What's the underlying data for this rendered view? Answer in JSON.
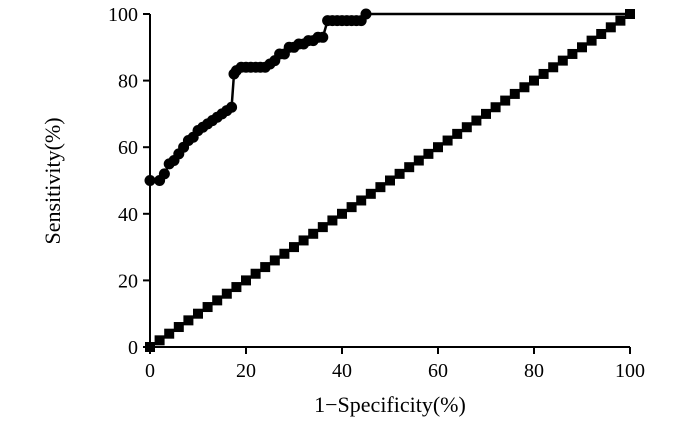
{
  "chart_data": {
    "type": "line",
    "title": "",
    "xlabel": "1−Specificity(%)",
    "ylabel": "Sensitivity(%)",
    "xlim": [
      0,
      100
    ],
    "ylim": [
      0,
      100
    ],
    "xticks": [
      "0",
      "20",
      "40",
      "60",
      "80",
      "100"
    ],
    "yticks": [
      "0",
      "20",
      "40",
      "60",
      "80",
      "100"
    ],
    "grid": false,
    "legend": "none",
    "series": [
      {
        "marker": "circle",
        "color": "#000000",
        "x": [
          0,
          2,
          3,
          4,
          5,
          6,
          7,
          8,
          9,
          10,
          11,
          12,
          13,
          14,
          15,
          16,
          17,
          17.5,
          18,
          19,
          20,
          21,
          22,
          23,
          24,
          25,
          26,
          27,
          28,
          29,
          30,
          31,
          32,
          33,
          34,
          35,
          36,
          37,
          38,
          39,
          40,
          41,
          42,
          43,
          44,
          45,
          100
        ],
        "y": [
          50,
          50,
          52,
          55,
          56,
          58,
          60,
          62,
          63,
          65,
          66,
          67,
          68,
          69,
          70,
          71,
          72,
          82,
          83,
          84,
          84,
          84,
          84,
          84,
          84,
          85,
          86,
          88,
          88,
          90,
          90,
          91,
          91,
          92,
          92,
          93,
          93,
          98,
          98,
          98,
          98,
          98,
          98,
          98,
          98,
          100,
          100
        ]
      },
      {
        "marker": "square",
        "color": "#000000",
        "x": [
          0,
          2,
          4,
          6,
          8,
          10,
          12,
          14,
          16,
          18,
          20,
          22,
          24,
          26,
          28,
          30,
          32,
          34,
          36,
          38,
          40,
          42,
          44,
          46,
          48,
          50,
          52,
          54,
          56,
          58,
          60,
          62,
          64,
          66,
          68,
          70,
          72,
          74,
          76,
          78,
          80,
          82,
          84,
          86,
          88,
          90,
          92,
          94,
          96,
          98,
          100
        ],
        "y": [
          0,
          2,
          4,
          6,
          8,
          10,
          12,
          14,
          16,
          18,
          20,
          22,
          24,
          26,
          28,
          30,
          32,
          34,
          36,
          38,
          40,
          42,
          44,
          46,
          48,
          50,
          52,
          54,
          56,
          58,
          60,
          62,
          64,
          66,
          68,
          70,
          72,
          74,
          76,
          78,
          80,
          82,
          84,
          86,
          88,
          90,
          92,
          94,
          96,
          98,
          100
        ]
      }
    ]
  }
}
